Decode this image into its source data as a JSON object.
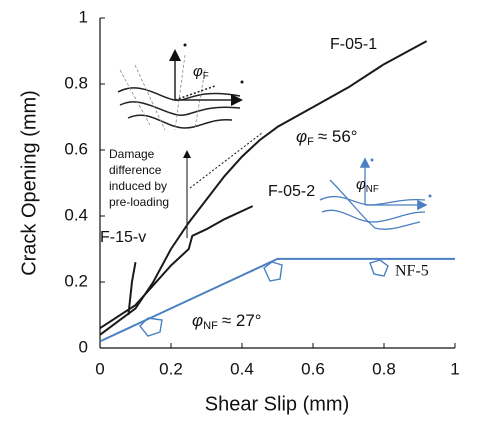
{
  "chart_data": {
    "type": "line",
    "x_label": "Shear Slip (mm)",
    "y_label": "Crack Opening (mm)",
    "xlim": [
      0,
      1
    ],
    "ylim": [
      0,
      1
    ],
    "xticks": [
      0,
      0.2,
      0.4,
      0.6,
      0.8,
      1
    ],
    "yticks": [
      0,
      0.2,
      0.4,
      0.6,
      0.8,
      1
    ],
    "series": [
      {
        "name": "F-05-1",
        "color": "#1a1a1a",
        "x": [
          0,
          0.05,
          0.1,
          0.15,
          0.2,
          0.25,
          0.3,
          0.35,
          0.4,
          0.45,
          0.5,
          0.6,
          0.7,
          0.8,
          0.92
        ],
        "values": [
          0.04,
          0.08,
          0.12,
          0.2,
          0.3,
          0.38,
          0.45,
          0.52,
          0.58,
          0.63,
          0.67,
          0.73,
          0.79,
          0.86,
          0.93
        ]
      },
      {
        "name": "F-05-2",
        "color": "#1a1a1a",
        "x": [
          0,
          0.1,
          0.2,
          0.25,
          0.26,
          0.3,
          0.35,
          0.43
        ],
        "values": [
          0.06,
          0.13,
          0.25,
          0.3,
          0.34,
          0.36,
          0.39,
          0.43
        ]
      },
      {
        "name": "F-15-v",
        "color": "#1a1a1a",
        "x": [
          0.08,
          0.09,
          0.1
        ],
        "values": [
          0.1,
          0.2,
          0.26
        ]
      },
      {
        "name": "NF-5",
        "color": "#4a7fc1",
        "x": [
          0,
          0.1,
          0.2,
          0.3,
          0.4,
          0.48,
          0.5,
          0.7,
          1.0
        ],
        "values": [
          0.02,
          0.07,
          0.12,
          0.17,
          0.22,
          0.26,
          0.27,
          0.27,
          0.27
        ]
      }
    ],
    "annotations": [
      {
        "symbol": "φ",
        "subscript": "F",
        "text": "≈ 56°",
        "color": "#1a1a1a"
      },
      {
        "symbol": "φ",
        "subscript": "NF",
        "text": "≈ 27°",
        "color": "#4a7fc1"
      }
    ],
    "note_lines": [
      "Damage",
      "difference",
      "induced by",
      "pre-loading"
    ],
    "sketch_labels": [
      {
        "symbol": "φ",
        "subscript": "F"
      },
      {
        "symbol": "φ",
        "subscript": "NF"
      }
    ]
  }
}
